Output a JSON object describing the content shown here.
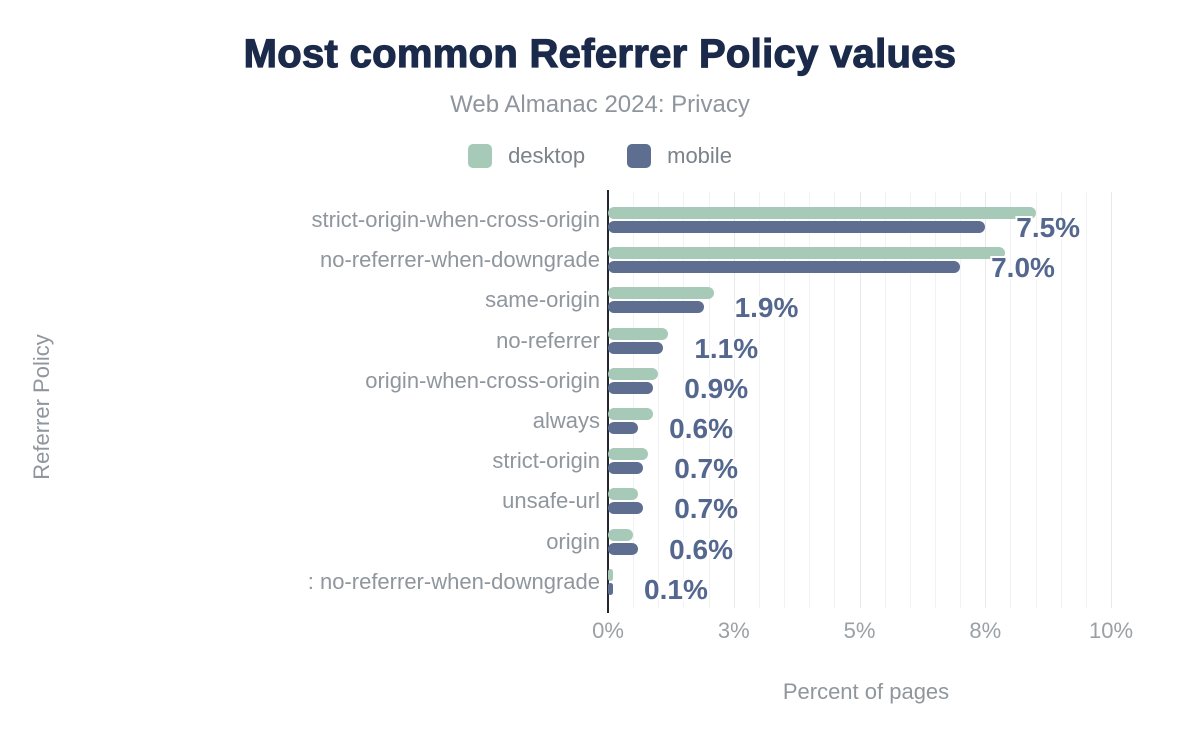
{
  "title": "Most common Referrer Policy values",
  "subtitle": "Web Almanac 2024: Privacy",
  "legend": {
    "items": [
      {
        "label": "desktop",
        "color": "#a7cab8"
      },
      {
        "label": "mobile",
        "color": "#5d6e90"
      }
    ]
  },
  "x_axis": {
    "title": "Percent of pages",
    "ticks": [
      {
        "value": 0,
        "label": "0%"
      },
      {
        "value": 2.5,
        "label": "3%"
      },
      {
        "value": 5,
        "label": "5%"
      },
      {
        "value": 7.5,
        "label": "8%"
      },
      {
        "value": 10,
        "label": "10%"
      }
    ]
  },
  "y_axis": {
    "title": "Referrer Policy"
  },
  "chart_data": {
    "type": "bar",
    "orientation": "horizontal",
    "title": "Most common Referrer Policy values",
    "subtitle": "Web Almanac 2024: Privacy",
    "xlabel": "Percent of pages",
    "ylabel": "Referrer Policy",
    "xlim": [
      0,
      10
    ],
    "grid": true,
    "minor_grid_step": 0.5,
    "legend_position": "top",
    "categories": [
      "strict-origin-when-cross-origin",
      "no-referrer-when-downgrade",
      "same-origin",
      "no-referrer",
      "origin-when-cross-origin",
      "always",
      "strict-origin",
      "unsafe-url",
      "origin",
      ": no-referrer-when-downgrade"
    ],
    "series": [
      {
        "name": "desktop",
        "color": "#a7cab8",
        "values": [
          8.5,
          7.9,
          2.1,
          1.2,
          1.0,
          0.9,
          0.8,
          0.6,
          0.5,
          0.1
        ]
      },
      {
        "name": "mobile",
        "color": "#5d6e90",
        "values": [
          7.5,
          7.0,
          1.9,
          1.1,
          0.9,
          0.6,
          0.7,
          0.7,
          0.6,
          0.1
        ]
      }
    ],
    "data_labels": [
      "7.5%",
      "7.0%",
      "1.9%",
      "1.1%",
      "0.9%",
      "0.6%",
      "0.7%",
      "0.7%",
      "0.6%",
      "0.1%"
    ],
    "data_labels_source": "mobile"
  },
  "colors": {
    "title": "#1b2a4a",
    "subtitle": "#8e959e",
    "axis_line": "#23272f",
    "gridline": "#f1f2f3",
    "gridline_major": "#e7e9ea",
    "value_label": "#54678e",
    "tick_label": "#9aa0a6",
    "category_label": "#8f969d",
    "background": "#ffffff"
  }
}
